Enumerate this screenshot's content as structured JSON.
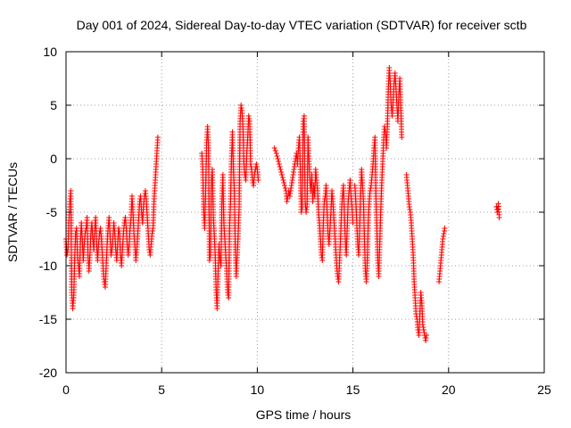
{
  "chart_data": {
    "type": "scatter",
    "title": "Day 001 of 2024, Sidereal Day-to-day VTEC variation (SDTVAR) for receiver sctb",
    "xlabel": "GPS time / hours",
    "ylabel": "SDTVAR / TECUs",
    "xlim": [
      0,
      25
    ],
    "ylim": [
      -20,
      10
    ],
    "x_ticks": [
      0,
      5,
      10,
      15,
      20,
      25
    ],
    "y_ticks": [
      -20,
      -15,
      -10,
      -5,
      0,
      5,
      10
    ],
    "x_tick_labels": [
      "0",
      "5",
      "10",
      "15",
      "20",
      "25"
    ],
    "y_tick_labels": [
      "-20",
      "-15",
      "-10",
      "-5",
      "0",
      "5",
      "10"
    ],
    "grid": true,
    "marker": "plus",
    "color": "#ff0000",
    "series_name": "SDTVAR",
    "segments": [
      {
        "x": [
          0.0,
          0.05,
          0.1,
          0.15,
          0.2,
          0.25,
          0.3,
          0.35,
          0.4,
          0.45,
          0.5,
          0.55,
          0.6,
          0.65,
          0.7,
          0.75,
          0.8,
          0.85,
          0.9,
          0.95,
          1.0,
          1.05,
          1.1,
          1.15,
          1.2,
          1.25,
          1.3,
          1.35,
          1.4,
          1.45,
          1.5,
          1.55,
          1.6,
          1.65,
          1.7,
          1.75,
          1.8,
          1.85,
          1.9,
          1.95,
          2.0,
          2.05,
          2.1,
          2.15,
          2.2,
          2.25,
          2.3,
          2.35,
          2.4,
          2.45,
          2.5,
          2.55,
          2.6,
          2.65,
          2.7,
          2.75,
          2.8,
          2.85,
          2.9,
          2.95,
          3.0,
          3.05,
          3.1,
          3.15,
          3.2,
          3.25,
          3.3,
          3.35,
          3.4,
          3.45,
          3.5,
          3.55,
          3.6,
          3.65,
          3.7,
          3.75,
          3.8,
          3.85,
          3.9,
          3.95,
          4.0,
          4.05,
          4.1,
          4.15,
          4.2,
          4.25,
          4.3,
          4.35,
          4.4,
          4.45,
          4.5,
          4.55,
          4.6,
          4.65,
          4.7,
          4.75,
          4.8
        ],
        "y": [
          -7.5,
          -9.0,
          -8.5,
          -6.0,
          -4.0,
          -3.0,
          -12.5,
          -14.0,
          -13.0,
          -9.5,
          -7.0,
          -6.5,
          -9.0,
          -10.0,
          -11.0,
          -8.0,
          -6.0,
          -7.5,
          -9.5,
          -8.0,
          -7.0,
          -6.5,
          -5.5,
          -9.0,
          -10.5,
          -9.0,
          -7.0,
          -6.0,
          -7.5,
          -8.5,
          -6.5,
          -5.5,
          -8.0,
          -9.5,
          -8.0,
          -7.0,
          -6.5,
          -7.5,
          -9.0,
          -10.5,
          -11.5,
          -12.0,
          -10.0,
          -8.0,
          -6.5,
          -5.5,
          -7.0,
          -9.0,
          -8.5,
          -7.5,
          -6.0,
          -7.0,
          -8.5,
          -9.5,
          -8.0,
          -6.5,
          -7.0,
          -9.0,
          -10.0,
          -8.5,
          -7.0,
          -6.0,
          -5.5,
          -6.5,
          -8.0,
          -9.0,
          -8.0,
          -6.5,
          -5.5,
          -3.5,
          -5.0,
          -7.0,
          -8.0,
          -9.5,
          -8.5,
          -7.0,
          -5.5,
          -4.0,
          -3.5,
          -5.0,
          -6.0,
          -4.5,
          -3.5,
          -3.0,
          -4.0,
          -5.5,
          -7.0,
          -8.5,
          -9.0,
          -8.0,
          -7.0,
          -6.5,
          -4.0,
          -2.5,
          -1.0,
          0.5,
          2.0
        ]
      },
      {
        "x": [
          7.1,
          7.15,
          7.2,
          7.25,
          7.3,
          7.35,
          7.4,
          7.45,
          7.5,
          7.55,
          7.6,
          7.65,
          7.7,
          7.75,
          7.8,
          7.85,
          7.9,
          7.95,
          8.0,
          8.05,
          8.1,
          8.15,
          8.2,
          8.25,
          8.3,
          8.35,
          8.4,
          8.45,
          8.5,
          8.55,
          8.6,
          8.65,
          8.7,
          8.75,
          8.8,
          8.85,
          8.9,
          8.95,
          9.0,
          9.05,
          9.1,
          9.15,
          9.2,
          9.25,
          9.3,
          9.35,
          9.4,
          9.45,
          9.5,
          9.55,
          9.6,
          9.65,
          9.7,
          9.75,
          9.8,
          9.85,
          9.9,
          9.95,
          10.0,
          10.05
        ],
        "y": [
          0.5,
          -1.0,
          -5.0,
          -6.5,
          -3.0,
          1.5,
          3.0,
          1.0,
          -9.5,
          -9.0,
          -2.0,
          -1.0,
          -5.5,
          -7.0,
          -9.0,
          -12.5,
          -14.0,
          -10.5,
          -8.0,
          -9.5,
          -10.0,
          -4.0,
          -1.5,
          -6.0,
          -7.5,
          -9.0,
          -10.5,
          -12.5,
          -13.0,
          -6.5,
          -4.0,
          0.0,
          2.5,
          -1.0,
          -3.0,
          -8.5,
          -11.0,
          -9.0,
          -7.0,
          -4.5,
          3.5,
          5.0,
          4.5,
          3.0,
          -0.5,
          -1.5,
          -2.0,
          0.5,
          2.0,
          4.0,
          3.5,
          -0.5,
          -1.0,
          -2.0,
          -2.5,
          -1.5,
          -1.0,
          -0.5,
          -1.0,
          -2.0
        ]
      },
      {
        "x": [
          10.9,
          11.0,
          11.5,
          11.55,
          11.6,
          11.65,
          11.7,
          12.0,
          12.05,
          12.1,
          12.15,
          12.2,
          12.25,
          12.3,
          12.35,
          12.4,
          12.45,
          12.5,
          12.55,
          12.6,
          12.65,
          12.7,
          12.75,
          12.8,
          12.85,
          12.9,
          12.95,
          13.0,
          13.05,
          13.1,
          13.15,
          13.2,
          13.25,
          13.3,
          13.35,
          13.4,
          13.45,
          13.5,
          13.55,
          13.6,
          13.65,
          13.7,
          13.75,
          13.8,
          13.85,
          13.9,
          13.95,
          14.0,
          14.05,
          14.1,
          14.15,
          14.2,
          14.25,
          14.3,
          14.35,
          14.4,
          14.45,
          14.5,
          14.55,
          14.6,
          14.65,
          14.7,
          14.75,
          14.8,
          14.85,
          14.9,
          14.95,
          15.0
        ],
        "y": [
          1.0,
          0.5,
          -3.0,
          -4.0,
          -3.5,
          -3.0,
          -3.5,
          0.0,
          0.5,
          -0.5,
          1.0,
          2.0,
          -1.0,
          -5.0,
          -4.5,
          3.5,
          4.0,
          -4.0,
          -5.0,
          -4.5,
          2.0,
          0.0,
          -2.0,
          -3.0,
          -1.5,
          -4.0,
          -2.5,
          -3.5,
          -1.0,
          -2.0,
          -3.0,
          -5.0,
          -6.0,
          -7.5,
          -9.0,
          -9.5,
          -6.0,
          -4.0,
          -3.5,
          -2.5,
          -5.0,
          -7.0,
          -8.0,
          -6.5,
          -5.0,
          -3.0,
          -4.0,
          -5.5,
          -7.0,
          -8.5,
          -10.0,
          -11.0,
          -11.5,
          -9.5,
          -7.5,
          -5.0,
          -3.5,
          -2.5,
          -5.0,
          -7.5,
          -9.0,
          -6.5,
          -4.0,
          -3.0,
          -2.0,
          -3.5,
          -4.5,
          -6.0
        ]
      },
      {
        "x": [
          15.1,
          15.15,
          15.2,
          15.25,
          15.3,
          15.35,
          15.4,
          15.45,
          15.5,
          15.55,
          15.6,
          15.65,
          15.7,
          15.75,
          15.8,
          15.85,
          15.9,
          15.95,
          16.0,
          16.05,
          16.1,
          16.15,
          16.2,
          16.25,
          16.3,
          16.35,
          16.4,
          16.45,
          16.5,
          16.55,
          16.6,
          16.65,
          16.7,
          16.75,
          16.8,
          16.85,
          16.9,
          16.95,
          17.0,
          17.05,
          17.1,
          17.15,
          17.2,
          17.25,
          17.3,
          17.35,
          17.4,
          17.45,
          17.5,
          17.55
        ],
        "y": [
          -2.5,
          -4.0,
          -6.0,
          -8.0,
          -9.0,
          -6.5,
          -3.5,
          -1.0,
          -2.5,
          -4.0,
          -7.5,
          -10.5,
          -11.5,
          -9.5,
          -6.0,
          -4.0,
          -3.0,
          -2.5,
          -1.5,
          -0.5,
          1.0,
          2.0,
          -3.5,
          -6.5,
          -9.5,
          -11.0,
          -8.0,
          -5.0,
          -2.5,
          -0.5,
          1.5,
          3.0,
          2.5,
          1.0,
          3.0,
          6.5,
          8.5,
          7.0,
          5.0,
          4.0,
          5.5,
          7.0,
          8.0,
          6.5,
          5.0,
          3.5,
          6.0,
          7.5,
          5.0,
          2.0
        ]
      },
      {
        "x": [
          17.8,
          17.85,
          17.9,
          17.95,
          18.0,
          18.05,
          18.1,
          18.15,
          18.2,
          18.25,
          18.3,
          18.35,
          18.4,
          18.45,
          18.5,
          18.55,
          18.6,
          18.65,
          18.7,
          18.75,
          18.8,
          18.85
        ],
        "y": [
          -1.5,
          -2.5,
          -3.5,
          -4.5,
          -5.0,
          -6.0,
          -7.5,
          -9.0,
          -11.5,
          -13.0,
          -14.5,
          -15.0,
          -16.0,
          -16.5,
          -14.5,
          -12.5,
          -13.5,
          -15.5,
          -16.0,
          -16.5,
          -17.0,
          -16.5
        ]
      },
      {
        "x": [
          19.5,
          19.55,
          19.6,
          19.65,
          19.7,
          19.75,
          19.8
        ],
        "y": [
          -11.5,
          -10.5,
          -9.5,
          -8.5,
          -7.5,
          -7.0,
          -6.5
        ]
      },
      {
        "x": [
          22.5,
          22.55,
          22.6,
          22.65
        ],
        "y": [
          -4.5,
          -5.0,
          -4.2,
          -5.5
        ]
      }
    ]
  }
}
